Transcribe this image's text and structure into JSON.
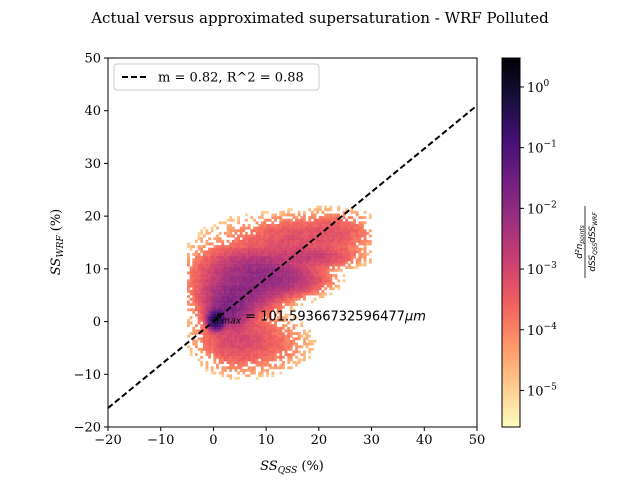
{
  "chart_data": {
    "type": "heatmap",
    "title": "Actual versus approximated supersaturation - WRF Polluted",
    "xlabel_base": "SS",
    "xlabel_sub": "QSS",
    "xlabel_unit": " (%)",
    "ylabel_base": "SS",
    "ylabel_sub": "WRF",
    "ylabel_unit": " (%)",
    "xlim": [
      -20,
      50
    ],
    "ylim": [
      -20,
      50
    ],
    "xticks": [
      -20,
      -10,
      0,
      10,
      20,
      30,
      40,
      50
    ],
    "yticks": [
      -20,
      -10,
      0,
      10,
      20,
      30,
      40,
      50
    ],
    "legend_placement": "top-left",
    "fit_line": {
      "label": "m = 0.82, R^2 = 0.88",
      "slope": 0.82,
      "intercept": 0.0,
      "color": "#000000"
    },
    "annotation": {
      "prefix": "r",
      "sub": "max",
      "text": " = 101.59366732596477",
      "unit": "μm",
      "x": 0.5,
      "y": 1.0
    },
    "colorbar": {
      "scale": "log",
      "min": 2.5e-06,
      "max": 3.0,
      "ticks": [
        {
          "value": 1e-05,
          "base": "10",
          "exp": "−5"
        },
        {
          "value": 0.0001,
          "base": "10",
          "exp": "−4"
        },
        {
          "value": 0.001,
          "base": "10",
          "exp": "−3"
        },
        {
          "value": 0.01,
          "base": "10",
          "exp": "−2"
        },
        {
          "value": 0.1,
          "base": "10",
          "exp": "−1"
        },
        {
          "value": 1,
          "base": "10",
          "exp": "0"
        }
      ],
      "label_num": "d²n",
      "label_num_sub": "points",
      "label_den": "dSS",
      "label_den_sub1": "QSS",
      "label_den_mid": "dSS",
      "label_den_sub2": "WRF",
      "colormap": [
        "#fcfdbf",
        "#feca8d",
        "#fd9668",
        "#f1605d",
        "#cd4071",
        "#9e2f7f",
        "#721f81",
        "#440f76",
        "#180f3d",
        "#000004"
      ]
    }
  }
}
